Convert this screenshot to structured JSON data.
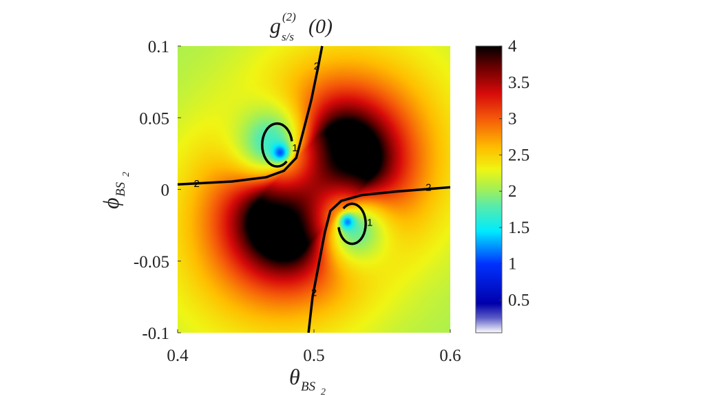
{
  "chart_data": {
    "type": "heatmap",
    "title": "g",
    "title_super": "(2)",
    "title_sub": "s/s",
    "title_arg": "(0)",
    "xlabel": "θ",
    "xlabel_sub": "BS",
    "xlabel_subsub": "2",
    "ylabel": "ϕ",
    "ylabel_sub": "BS",
    "ylabel_subsub": "2",
    "xlim": [
      0.4,
      0.6
    ],
    "ylim": [
      -0.1,
      0.1
    ],
    "x_ticks": [
      0.4,
      0.5,
      0.6
    ],
    "x_tick_labels": [
      "0.4",
      "0.5",
      "0.6"
    ],
    "y_ticks": [
      -0.1,
      -0.05,
      0,
      0.05,
      0.1
    ],
    "y_tick_labels": [
      "-0.1",
      "-0.05",
      "0",
      "0.05",
      "0.1"
    ],
    "colorbar": {
      "range": [
        0.05,
        4
      ],
      "ticks": [
        0.5,
        1,
        1.5,
        2,
        2.5,
        3,
        3.5,
        4
      ],
      "tick_labels": [
        "0.5",
        "1",
        "1.5",
        "2",
        "2.5",
        "3",
        "3.5",
        "4"
      ],
      "colormap": "jet-with-white-low"
    },
    "field_features": {
      "background_value": 2,
      "max_value": 4,
      "min_value": 0.05,
      "minima": [
        {
          "x": 0.476,
          "y": 0.025,
          "value": 0.05
        },
        {
          "x": 0.524,
          "y": -0.022,
          "value": 0.05
        }
      ],
      "saturated_region_center": {
        "x": 0.5,
        "y": 0.0
      }
    },
    "contours": [
      {
        "level": 2,
        "label": "2"
      },
      {
        "level": 1,
        "label": "1"
      }
    ],
    "contour_labels": [
      "2",
      "2",
      "2",
      "2",
      "1",
      "1"
    ],
    "colors": {
      "low": "#ffffff",
      "blue": "#0000c8",
      "cyan": "#00e5ff",
      "green": "#9be86b",
      "yellow": "#ffee00",
      "red": "#ee1b0c",
      "high": "#000000"
    }
  }
}
